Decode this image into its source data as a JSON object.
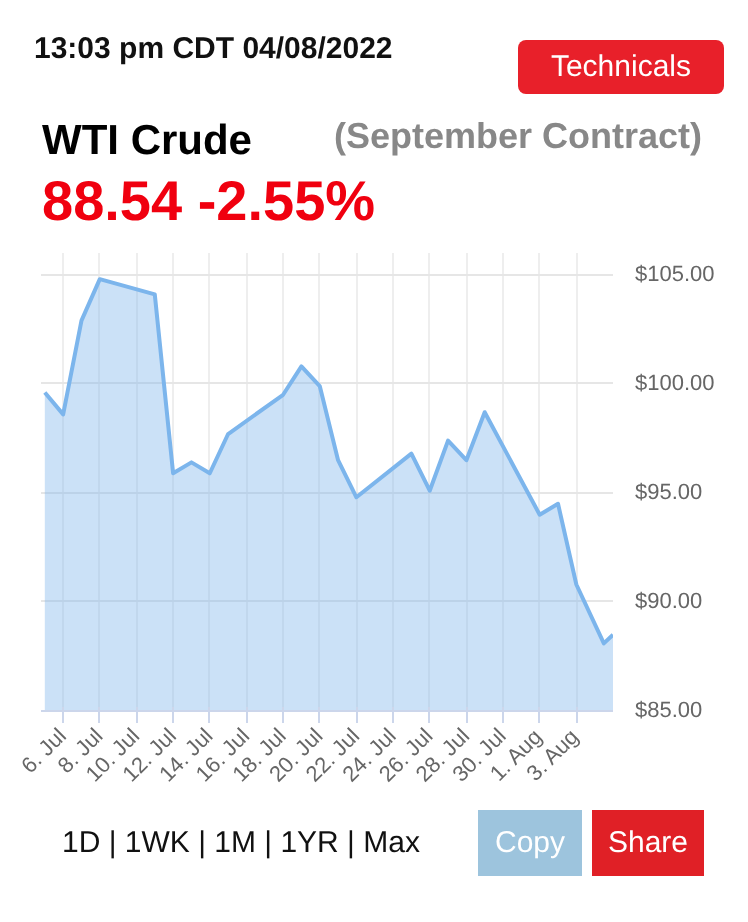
{
  "chart_data": {
    "type": "area",
    "title": "WTI Crude",
    "subtitle": "(September Contract)",
    "annotations": [
      "13:03 pm CDT 04/08/2022",
      "88.54 -2.55%",
      "Technicals",
      "1D | 1WK | 1M | 1YR | Max",
      "Copy",
      "Share"
    ],
    "x": [
      "2022-07-05",
      "2022-07-06",
      "2022-07-07",
      "2022-07-08",
      "2022-07-11",
      "2022-07-12",
      "2022-07-13",
      "2022-07-14",
      "2022-07-15",
      "2022-07-18",
      "2022-07-19",
      "2022-07-20",
      "2022-07-21",
      "2022-07-22",
      "2022-07-25",
      "2022-07-26",
      "2022-07-27",
      "2022-07-28",
      "2022-07-29",
      "2022-08-01",
      "2022-08-02",
      "2022-08-03",
      "2022-08-04T12:00",
      "2022-08-05"
    ],
    "series": [
      {
        "color": "#7cb5ec",
        "values": [
          99.6,
          98.6,
          102.9,
          104.8,
          104.1,
          95.9,
          96.4,
          95.9,
          97.7,
          99.5,
          100.8,
          99.9,
          96.5,
          94.8,
          96.8,
          95.1,
          97.4,
          96.5,
          98.7,
          94.0,
          94.5,
          90.8,
          88.1,
          88.5
        ]
      }
    ],
    "xlim": [
      "2022-07-04T19:00",
      "2022-08-05"
    ],
    "ylim": [
      85,
      106
    ],
    "xticks": [
      {
        "value": "2022-07-06",
        "label": "6. Jul"
      },
      {
        "value": "2022-07-08",
        "label": "8. Jul"
      },
      {
        "value": "2022-07-10",
        "label": "10. Jul"
      },
      {
        "value": "2022-07-12",
        "label": "12. Jul"
      },
      {
        "value": "2022-07-14",
        "label": "14. Jul"
      },
      {
        "value": "2022-07-16",
        "label": "16. Jul"
      },
      {
        "value": "2022-07-18",
        "label": "18. Jul"
      },
      {
        "value": "2022-07-20",
        "label": "20. Jul"
      },
      {
        "value": "2022-07-22",
        "label": "22. Jul"
      },
      {
        "value": "2022-07-24",
        "label": "24. Jul"
      },
      {
        "value": "2022-07-26",
        "label": "26. Jul"
      },
      {
        "value": "2022-07-28",
        "label": "28. Jul"
      },
      {
        "value": "2022-07-30",
        "label": "30. Jul"
      },
      {
        "value": "2022-08-01",
        "label": "1. Aug"
      },
      {
        "value": "2022-08-03",
        "label": "3. Aug"
      }
    ],
    "yticks": [
      {
        "value": 85,
        "label": "$85.00"
      },
      {
        "value": 90,
        "label": "$90.00"
      },
      {
        "value": 95,
        "label": "$95.00"
      },
      {
        "value": 100,
        "label": "$100.00"
      },
      {
        "value": 105,
        "label": "$105.00"
      }
    ],
    "grid": true,
    "marker": "none",
    "line_style": "solid"
  }
}
